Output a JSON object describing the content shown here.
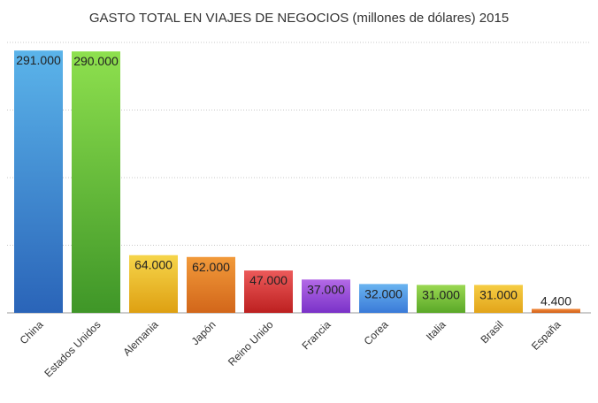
{
  "chart_data": {
    "type": "bar",
    "title": "GASTO TOTAL EN VIAJES DE NEGOCIOS (millones de dólares) 2015",
    "xlabel": "",
    "ylabel": "",
    "ylim": [
      0,
      300000
    ],
    "grid": true,
    "categories": [
      "China",
      "Estados Unidos",
      "Alemania",
      "Japón",
      "Reino Unido",
      "Francia",
      "Corea",
      "Italia",
      "Brasil",
      "España"
    ],
    "values": [
      291000,
      290000,
      64000,
      62000,
      47000,
      37000,
      32000,
      31000,
      31000,
      4400
    ],
    "value_labels": [
      "291.000",
      "290.000",
      "64.000",
      "62.000",
      "47.000",
      "37.000",
      "32.000",
      "31.000",
      "31.000",
      "4.400"
    ],
    "colors": [
      [
        "#5bb4ea",
        "#2a64b8"
      ],
      [
        "#8ee04e",
        "#3f9628"
      ],
      [
        "#f6d54a",
        "#dea012"
      ],
      [
        "#f29a3a",
        "#d2661a"
      ],
      [
        "#ec5a5a",
        "#bd2020"
      ],
      [
        "#b36ae6",
        "#7a32c8"
      ],
      [
        "#6ab4f0",
        "#3a7ad8"
      ],
      [
        "#9ad852",
        "#5aa828"
      ],
      [
        "#f6cd44",
        "#e2a41a"
      ],
      [
        "#f28a3a",
        "#d2621a"
      ]
    ]
  }
}
